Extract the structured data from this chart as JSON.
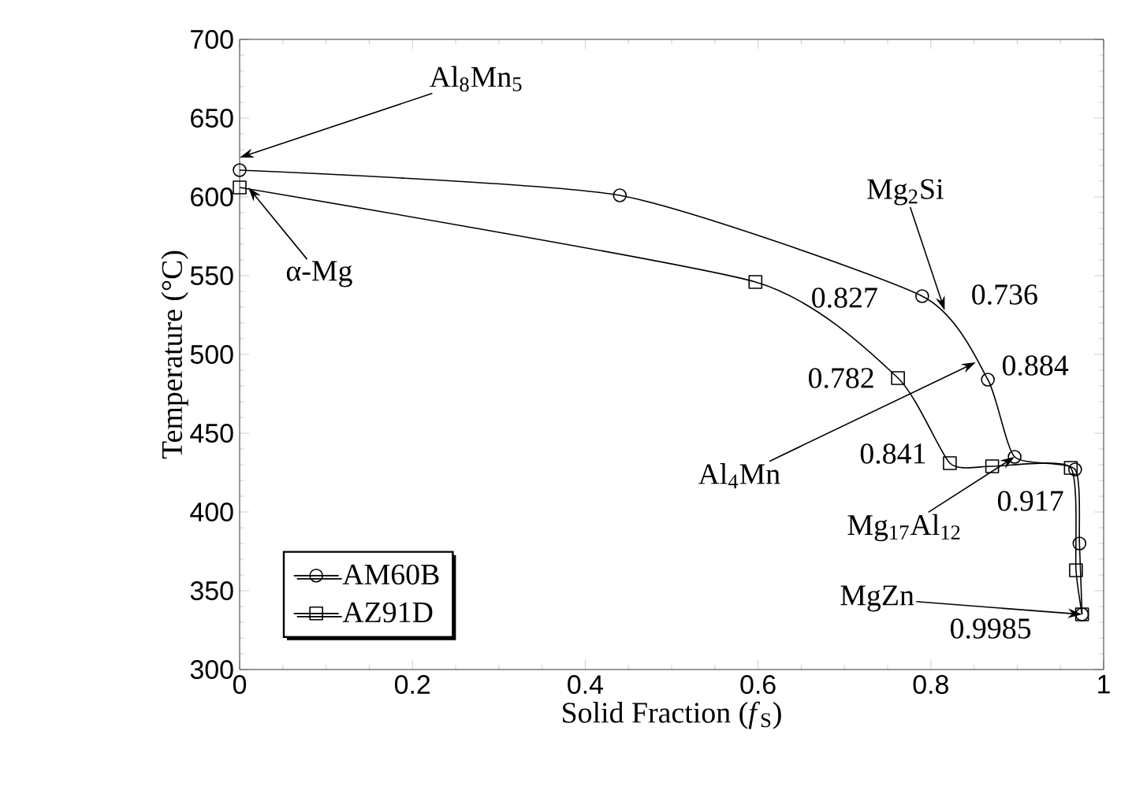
{
  "chart_data": {
    "type": "line",
    "xlabel": "Solid Fraction (*f*$_{S}$)",
    "ylabel": "Temperature (°C)",
    "xlim": [
      0,
      1
    ],
    "ylim": [
      300,
      700
    ],
    "xticks": [
      0,
      0.2,
      0.4,
      0.6,
      0.8,
      1
    ],
    "yticks": [
      300,
      350,
      400,
      450,
      500,
      550,
      600,
      650,
      700
    ],
    "grid": false,
    "legend": "bottom left",
    "line_style": "solid",
    "series": [
      {
        "name": "AM60B",
        "color": "#000000",
        "marker": "circle",
        "x": [
          0,
          0.44,
          0.79,
          0.866,
          0.897,
          0.967,
          0.972,
          0.975
        ],
        "values": [
          617,
          601,
          537,
          484,
          435,
          427,
          380,
          335
        ]
      },
      {
        "name": "AZ91D",
        "color": "#000000",
        "marker": "square",
        "x": [
          0,
          0.597,
          0.762,
          0.822,
          0.871,
          0.962,
          0.968,
          0.975
        ],
        "values": [
          606,
          546,
          485,
          431,
          429,
          428,
          363,
          335
        ]
      }
    ],
    "annotations": [
      {
        "text": "Al$_{8}$Mn$_{5}$",
        "x": 0,
        "y": 625
      },
      {
        "text": "α-Mg",
        "x": 0.01,
        "y": 606
      },
      {
        "text": "Mg$_{2}$Si",
        "x": 0.816,
        "y": 528
      },
      {
        "text": "0.827",
        "x": 0.722,
        "y": 506
      },
      {
        "text": "0.736",
        "x": 0.816,
        "y": 528
      },
      {
        "text": "0.782",
        "x": 0.762,
        "y": 485
      },
      {
        "text": "0.884",
        "x": 0.866,
        "y": 484
      },
      {
        "text": "Al$_{4}$Mn",
        "x": 0.852,
        "y": 495
      },
      {
        "text": "0.841",
        "x": 0.822,
        "y": 431
      },
      {
        "text": "0.917",
        "x": 0.897,
        "y": 435
      },
      {
        "text": "Mg$_{17}$Al$_{12}$",
        "x": 0.897,
        "y": 435
      },
      {
        "text": "MgZn",
        "x": 0.975,
        "y": 335
      },
      {
        "text": "0.9985",
        "x": 0.975,
        "y": 335
      }
    ]
  }
}
